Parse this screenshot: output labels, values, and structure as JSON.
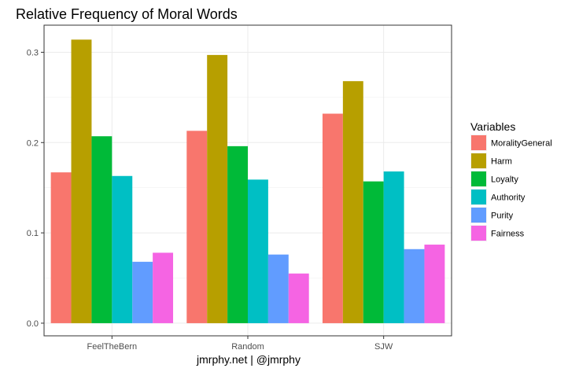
{
  "chart_data": {
    "type": "bar",
    "title": "Relative Frequency of Moral Words",
    "xlabel": "jmrphy.net | @jmrphy",
    "ylabel": "",
    "categories": [
      "FeelTheBern",
      "Random",
      "SJW"
    ],
    "series": [
      {
        "name": "MoralityGeneral",
        "color": "#F8766D",
        "values": [
          0.167,
          0.213,
          0.232
        ]
      },
      {
        "name": "Harm",
        "color": "#B79F00",
        "values": [
          0.314,
          0.297,
          0.268
        ]
      },
      {
        "name": "Loyalty",
        "color": "#00BA38",
        "values": [
          0.207,
          0.196,
          0.157
        ]
      },
      {
        "name": "Authority",
        "color": "#00BFC4",
        "values": [
          0.163,
          0.159,
          0.168
        ]
      },
      {
        "name": "Purity",
        "color": "#619CFF",
        "values": [
          0.068,
          0.076,
          0.082
        ]
      },
      {
        "name": "Fairness",
        "color": "#F564E3",
        "values": [
          0.078,
          0.055,
          0.087
        ]
      }
    ],
    "ylim": [
      -0.014,
      0.33
    ],
    "yticks": [
      0.0,
      0.1,
      0.2,
      0.3
    ],
    "ytick_labels": [
      "0.0",
      "0.1",
      "0.2",
      "0.3"
    ],
    "grid": true,
    "legend": {
      "title": "Variables",
      "placement": "right"
    }
  }
}
